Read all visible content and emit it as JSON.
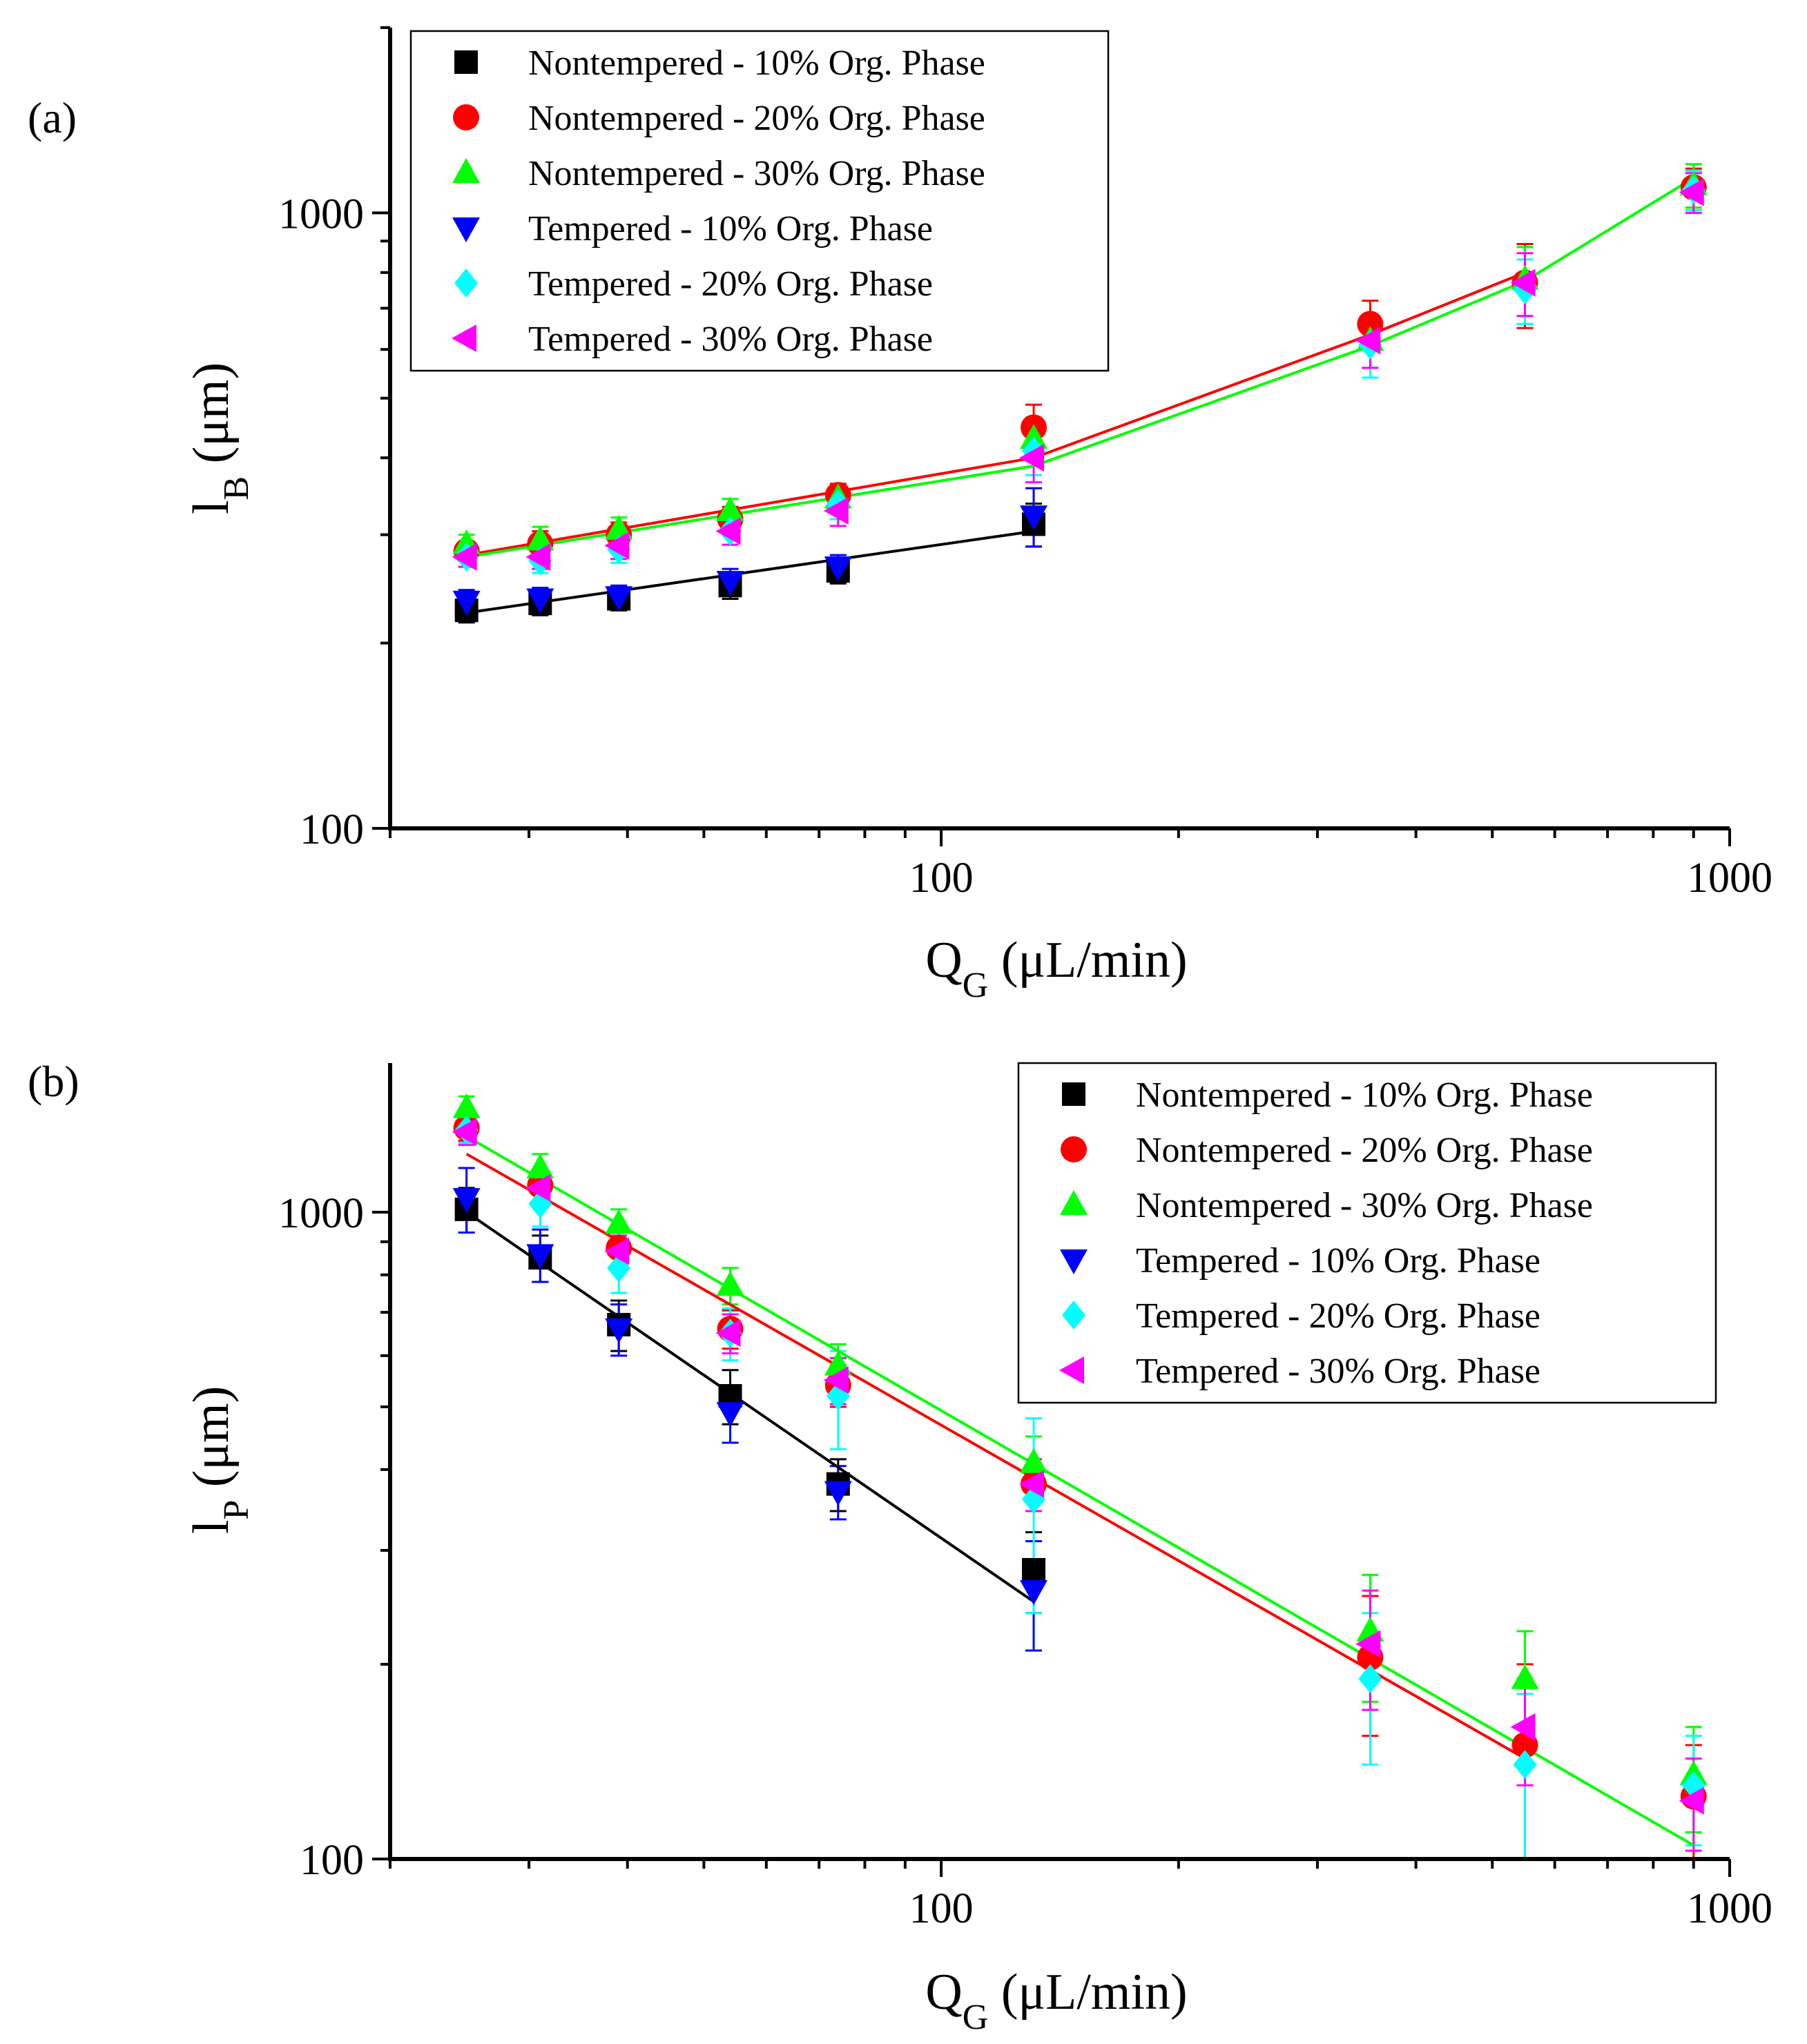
{
  "chart_data": [
    {
      "panel": "(a)",
      "type": "scatter",
      "xscale": "log",
      "yscale": "log",
      "xlim": [
        20,
        1000
      ],
      "ylim": [
        100,
        2000
      ],
      "xticks": [
        {
          "value": 100,
          "label": "100"
        },
        {
          "value": 1000,
          "label": "1000"
        }
      ],
      "yticks": [
        {
          "value": 100,
          "label": "100"
        },
        {
          "value": 1000,
          "label": "1000"
        }
      ],
      "xlabel": {
        "main": "Q",
        "sub": "G",
        "rest": " (μL/min)"
      },
      "ylabel": {
        "main": "l",
        "sub": "B",
        "rest": " (μm)"
      },
      "legend_position": "top-left",
      "series": [
        {
          "name": "Nontempered - 10% Org. Phase",
          "marker": "square",
          "color": "#000000",
          "x": [
            25,
            31,
            39,
            54,
            74,
            131
          ],
          "y": [
            226,
            232,
            236,
            248,
            262,
            312
          ],
          "err": [
            10,
            10,
            10,
            12,
            12,
            25
          ]
        },
        {
          "name": "Nontempered - 20% Org. Phase",
          "marker": "circle",
          "color": "#ff0000",
          "x": [
            25,
            31,
            39,
            54,
            74,
            131,
            350,
            550,
            900
          ],
          "y": [
            282,
            290,
            300,
            318,
            348,
            448,
            660,
            770,
            1100
          ],
          "err": [
            10,
            14,
            14,
            15,
            15,
            40,
            60,
            120,
            80
          ]
        },
        {
          "name": "Nontempered - 30% Org. Phase",
          "marker": "triangle-up",
          "color": "#00ff00",
          "x": [
            25,
            31,
            39,
            54,
            74,
            131,
            350,
            550,
            900
          ],
          "y": [
            290,
            294,
            306,
            328,
            344,
            430,
            620,
            780,
            1110
          ],
          "err": [
            10,
            15,
            14,
            15,
            15,
            35,
            60,
            100,
            90
          ]
        },
        {
          "name": "Tempered - 10% Org. Phase",
          "marker": "triangle-down",
          "color": "#0000ff",
          "x": [
            25,
            31,
            39,
            54,
            74,
            131
          ],
          "y": [
            234,
            236,
            238,
            252,
            266,
            322
          ],
          "err": [
            10,
            10,
            10,
            12,
            12,
            35
          ]
        },
        {
          "name": "Tempered - 20% Org. Phase",
          "marker": "diamond",
          "color": "#00ffff",
          "x": [
            25,
            31,
            39,
            54,
            74,
            131,
            350,
            550,
            900
          ],
          "y": [
            276,
            272,
            284,
            304,
            336,
            410,
            610,
            750,
            1090
          ],
          "err": [
            10,
            12,
            14,
            15,
            18,
            35,
            70,
            90,
            80
          ]
        },
        {
          "name": "Tempered - 30% Org. Phase",
          "marker": "triangle-left",
          "color": "#ff00ff",
          "x": [
            25,
            31,
            39,
            54,
            74,
            131,
            350,
            550,
            900
          ],
          "y": [
            276,
            276,
            288,
            304,
            328,
            400,
            620,
            770,
            1080
          ],
          "err": [
            10,
            12,
            14,
            15,
            18,
            35,
            60,
            90,
            80
          ]
        }
      ],
      "fit_lines": [
        {
          "color": "#000000",
          "x": [
            25,
            131
          ],
          "y": [
            224,
            304
          ]
        },
        {
          "color": "#ff0000",
          "x": [
            25,
            131,
            350,
            550
          ],
          "y": [
            278,
            400,
            634,
            800
          ]
        },
        {
          "color": "#00ff00",
          "x": [
            25,
            131,
            350,
            550,
            900
          ],
          "y": [
            276,
            388,
            608,
            775,
            1140
          ]
        }
      ]
    },
    {
      "panel": "(b)",
      "type": "scatter",
      "xscale": "log",
      "yscale": "log",
      "xlim": [
        20,
        1000
      ],
      "ylim": [
        100,
        1700
      ],
      "xticks": [
        {
          "value": 100,
          "label": "100"
        },
        {
          "value": 1000,
          "label": "1000"
        }
      ],
      "yticks": [
        {
          "value": 100,
          "label": "100"
        },
        {
          "value": 1000,
          "label": "1000"
        }
      ],
      "xlabel": {
        "main": "Q",
        "sub": "G",
        "rest": " (μL/min)"
      },
      "ylabel": {
        "main": "l",
        "sub": "P",
        "rest": " (μm)"
      },
      "legend_position": "top-right",
      "series": [
        {
          "name": "Nontempered - 10% Org. Phase",
          "marker": "square",
          "color": "#000000",
          "x": [
            25,
            31,
            39,
            54,
            74,
            131
          ],
          "y": [
            1010,
            850,
            670,
            520,
            380,
            280
          ],
          "err": [
            80,
            70,
            60,
            50,
            35,
            40
          ]
        },
        {
          "name": "Nontempered - 20% Org. Phase",
          "marker": "circle",
          "color": "#ff0000",
          "x": [
            25,
            31,
            39,
            54,
            74,
            131,
            350,
            550,
            900
          ],
          "y": [
            1350,
            1100,
            880,
            660,
            540,
            380,
            205,
            150,
            125
          ],
          "err": [
            60,
            60,
            50,
            45,
            40,
            35,
            50,
            50,
            25
          ]
        },
        {
          "name": "Nontempered - 30% Org. Phase",
          "marker": "triangle-up",
          "color": "#00ff00",
          "x": [
            25,
            31,
            39,
            54,
            74,
            131,
            350,
            550,
            900
          ],
          "y": [
            1450,
            1170,
            960,
            770,
            580,
            410,
            225,
            190,
            135
          ],
          "err": [
            60,
            60,
            50,
            50,
            45,
            40,
            50,
            35,
            25
          ]
        },
        {
          "name": "Tempered - 10% Org. Phase",
          "marker": "triangle-down",
          "color": "#0000ff",
          "x": [
            25,
            31,
            39,
            54,
            74,
            131
          ],
          "y": [
            1050,
            860,
            660,
            490,
            370,
            260
          ],
          "err": [
            120,
            80,
            60,
            50,
            35,
            50
          ]
        },
        {
          "name": "Tempered - 20% Org. Phase",
          "marker": "diamond",
          "color": "#00ffff",
          "x": [
            25,
            31,
            39,
            54,
            74,
            131,
            350,
            550,
            900
          ],
          "y": [
            1340,
            1030,
            820,
            650,
            520,
            360,
            190,
            140,
            130
          ],
          "err": [
            60,
            80,
            70,
            60,
            90,
            120,
            50,
            40,
            25
          ]
        },
        {
          "name": "Tempered - 30% Org. Phase",
          "marker": "triangle-left",
          "color": "#ff00ff",
          "x": [
            25,
            31,
            39,
            54,
            74,
            131,
            350,
            550,
            900
          ],
          "y": [
            1330,
            1090,
            870,
            650,
            550,
            380,
            215,
            160,
            123
          ],
          "err": [
            60,
            60,
            50,
            45,
            45,
            35,
            45,
            30,
            20
          ]
        }
      ],
      "fit_lines": [
        {
          "color": "#000000",
          "x": [
            25,
            131
          ],
          "y": [
            1000,
            250
          ]
        },
        {
          "color": "#ff0000",
          "x": [
            25,
            550
          ],
          "y": [
            1230,
            143
          ]
        },
        {
          "color": "#00ff00",
          "x": [
            25,
            900
          ],
          "y": [
            1310,
            105
          ]
        }
      ]
    }
  ]
}
